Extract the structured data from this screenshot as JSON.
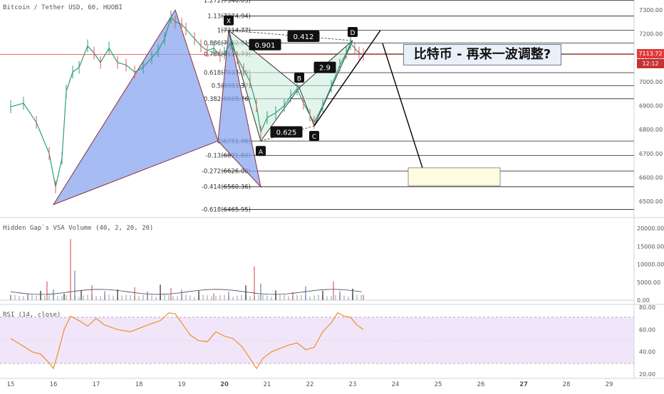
{
  "chart_data": [
    {
      "type": "candlestick",
      "title": "Bitcoin / Tether USD, 60, HUOBI",
      "x_ticks": [
        "15",
        "16",
        "17",
        "18",
        "19",
        "20",
        "21",
        "22",
        "23",
        "24",
        "25",
        "26",
        "27",
        "28",
        "29"
      ],
      "y_ticks": [
        "7300.00",
        "7200.00",
        "7100.00",
        "7000.00",
        "6900.00",
        "6800.00",
        "6700.00",
        "6600.00",
        "6500.00"
      ],
      "ylim": [
        6450,
        7330
      ],
      "last_price": "7113.72",
      "countdown": "12:12",
      "annotation": "比特币 - 再来一波调整?",
      "fibonacci_levels": [
        {
          "ratio": "1.272",
          "price": "7340.05",
          "value": 7340.05
        },
        {
          "ratio": "1.13",
          "price": "7274.94",
          "value": 7274.94
        },
        {
          "ratio": "1",
          "price": "7214.77",
          "value": 7214.77
        },
        {
          "ratio": "0.886",
          "price": "7162.01",
          "value": 7162.01
        },
        {
          "ratio": "0.786",
          "price": "7115.73",
          "value": 7115.73
        },
        {
          "ratio": "0.618",
          "price": "7037.95",
          "value": 7037.95
        },
        {
          "ratio": "0.5",
          "price": "6983.37",
          "value": 6983.37
        },
        {
          "ratio": "0.382",
          "price": "6928.76",
          "value": 6928.76
        },
        {
          "ratio": "0",
          "price": "6751.96",
          "value": 6751.96
        },
        {
          "ratio": "-0.13",
          "price": "6691.80",
          "value": 6691.8
        },
        {
          "ratio": "-0.272",
          "price": "6626.08",
          "value": 6626.08
        },
        {
          "ratio": "-0.414",
          "price": "6560.36",
          "value": 6560.36
        },
        {
          "ratio": "-0.618",
          "price": "6465.95",
          "value": 6465.95
        }
      ],
      "pattern_points": [
        {
          "label": "X",
          "x": 20.1,
          "y": 7214.77
        },
        {
          "label": "A",
          "x": 20.85,
          "y": 6751.96
        },
        {
          "label": "B",
          "x": 21.75,
          "y": 6975
        },
        {
          "label": "C",
          "x": 22.1,
          "y": 6815
        },
        {
          "label": "D",
          "x": 23.0,
          "y": 7172
        }
      ],
      "pattern_ratios": [
        "0.901",
        "0.412",
        "2.9",
        "0.625"
      ],
      "harmonic_triangles": [
        [
          {
            "x": 16.0,
            "y": 6486
          },
          {
            "x": 18.85,
            "y": 7300
          },
          {
            "x": 19.85,
            "y": 6752
          }
        ],
        [
          {
            "x": 19.85,
            "y": 6752
          },
          {
            "x": 20.1,
            "y": 7214.77
          },
          {
            "x": 20.85,
            "y": 6560
          }
        ]
      ],
      "projection_lines": [
        [
          {
            "x": 22.1,
            "y": 6815
          },
          {
            "x": 23.65,
            "y": 7215
          }
        ],
        [
          {
            "x": 23.7,
            "y": 7160
          },
          {
            "x": 24.65,
            "y": 6630
          }
        ]
      ],
      "target_zone": {
        "x0": 24.3,
        "x1": 26.45,
        "y0": 6565,
        "y1": 6640
      },
      "price_series": [
        [
          15.0,
          6895
        ],
        [
          15.3,
          6910
        ],
        [
          15.6,
          6830
        ],
        [
          15.9,
          6700
        ],
        [
          16.05,
          6560
        ],
        [
          16.2,
          6680
        ],
        [
          16.3,
          6960
        ],
        [
          16.45,
          7040
        ],
        [
          16.6,
          7060
        ],
        [
          16.8,
          7150
        ],
        [
          16.95,
          7120
        ],
        [
          17.1,
          7080
        ],
        [
          17.3,
          7140
        ],
        [
          17.5,
          7080
        ],
        [
          17.7,
          7070
        ],
        [
          17.9,
          7040
        ],
        [
          18.1,
          7060
        ],
        [
          18.3,
          7100
        ],
        [
          18.45,
          7130
        ],
        [
          18.6,
          7180
        ],
        [
          18.75,
          7270
        ],
        [
          18.85,
          7250
        ],
        [
          19.0,
          7240
        ],
        [
          19.1,
          7220
        ],
        [
          19.3,
          7180
        ],
        [
          19.45,
          7150
        ],
        [
          19.6,
          7130
        ],
        [
          19.75,
          7140
        ],
        [
          19.9,
          7110
        ],
        [
          20.0,
          7120
        ],
        [
          20.15,
          7160
        ],
        [
          20.3,
          7100
        ],
        [
          20.45,
          7050
        ],
        [
          20.6,
          7000
        ],
        [
          20.75,
          6900
        ],
        [
          20.85,
          6790
        ],
        [
          21.0,
          6850
        ],
        [
          21.2,
          6870
        ],
        [
          21.4,
          6900
        ],
        [
          21.55,
          6940
        ],
        [
          21.7,
          6970
        ],
        [
          21.85,
          6910
        ],
        [
          22.0,
          6860
        ],
        [
          22.1,
          6830
        ],
        [
          22.3,
          6900
        ],
        [
          22.5,
          6980
        ],
        [
          22.7,
          7070
        ],
        [
          22.85,
          7120
        ],
        [
          22.95,
          7160
        ],
        [
          23.05,
          7140
        ],
        [
          23.15,
          7120
        ],
        [
          23.25,
          7113.72
        ]
      ]
    },
    {
      "type": "bar",
      "title": "Hidden Gap`s VSA Volume (40, 2, 20, 20)",
      "y_ticks": [
        "20000.00",
        "15000.00",
        "10000.00",
        "5000.00",
        "0.00"
      ],
      "ylim": [
        0,
        22000
      ],
      "spikes": [
        [
          15.0,
          1400
        ],
        [
          15.4,
          1900
        ],
        [
          15.7,
          2600
        ],
        [
          15.85,
          5200
        ],
        [
          16.0,
          3000
        ],
        [
          16.25,
          1800
        ],
        [
          16.4,
          17000
        ],
        [
          16.5,
          8200
        ],
        [
          16.65,
          2800
        ],
        [
          16.9,
          4200
        ],
        [
          17.2,
          2500
        ],
        [
          17.5,
          3000
        ],
        [
          17.9,
          3600
        ],
        [
          18.2,
          2400
        ],
        [
          18.5,
          4300
        ],
        [
          18.75,
          3400
        ],
        [
          19.0,
          2900
        ],
        [
          19.4,
          2600
        ],
        [
          19.75,
          1900
        ],
        [
          20.1,
          2400
        ],
        [
          20.5,
          4100
        ],
        [
          20.7,
          9400
        ],
        [
          20.85,
          4600
        ],
        [
          21.2,
          2700
        ],
        [
          21.6,
          2300
        ],
        [
          21.9,
          3800
        ],
        [
          22.3,
          2600
        ],
        [
          22.55,
          5200
        ],
        [
          22.7,
          2500
        ],
        [
          23.0,
          3200
        ],
        [
          23.25,
          1500
        ]
      ]
    },
    {
      "type": "line",
      "title": "RSI (14, close)",
      "y_ticks": [
        "80.00",
        "60.00",
        "40.00",
        "20.00"
      ],
      "ylim": [
        18,
        84
      ],
      "band": [
        30,
        70
      ],
      "series": [
        {
          "values": [
            [
              15.0,
              52
            ],
            [
              15.3,
              45
            ],
            [
              15.5,
              40
            ],
            [
              15.7,
              38
            ],
            [
              15.9,
              30
            ],
            [
              16.0,
              25
            ],
            [
              16.1,
              38
            ],
            [
              16.25,
              60
            ],
            [
              16.4,
              72
            ],
            [
              16.6,
              68
            ],
            [
              16.8,
              63
            ],
            [
              17.0,
              70
            ],
            [
              17.2,
              64
            ],
            [
              17.5,
              60
            ],
            [
              17.8,
              58
            ],
            [
              18.0,
              61
            ],
            [
              18.2,
              64
            ],
            [
              18.5,
              68
            ],
            [
              18.7,
              75
            ],
            [
              18.85,
              74
            ],
            [
              19.0,
              66
            ],
            [
              19.2,
              55
            ],
            [
              19.4,
              50
            ],
            [
              19.6,
              49
            ],
            [
              19.8,
              58
            ],
            [
              20.0,
              54
            ],
            [
              20.2,
              52
            ],
            [
              20.4,
              45
            ],
            [
              20.6,
              34
            ],
            [
              20.75,
              25
            ],
            [
              20.9,
              34
            ],
            [
              21.1,
              40
            ],
            [
              21.3,
              43
            ],
            [
              21.5,
              46
            ],
            [
              21.7,
              48
            ],
            [
              21.9,
              42
            ],
            [
              22.1,
              44
            ],
            [
              22.3,
              58
            ],
            [
              22.5,
              66
            ],
            [
              22.65,
              75
            ],
            [
              22.8,
              72
            ],
            [
              22.95,
              71
            ],
            [
              23.1,
              64
            ],
            [
              23.25,
              60
            ]
          ]
        }
      ]
    }
  ]
}
